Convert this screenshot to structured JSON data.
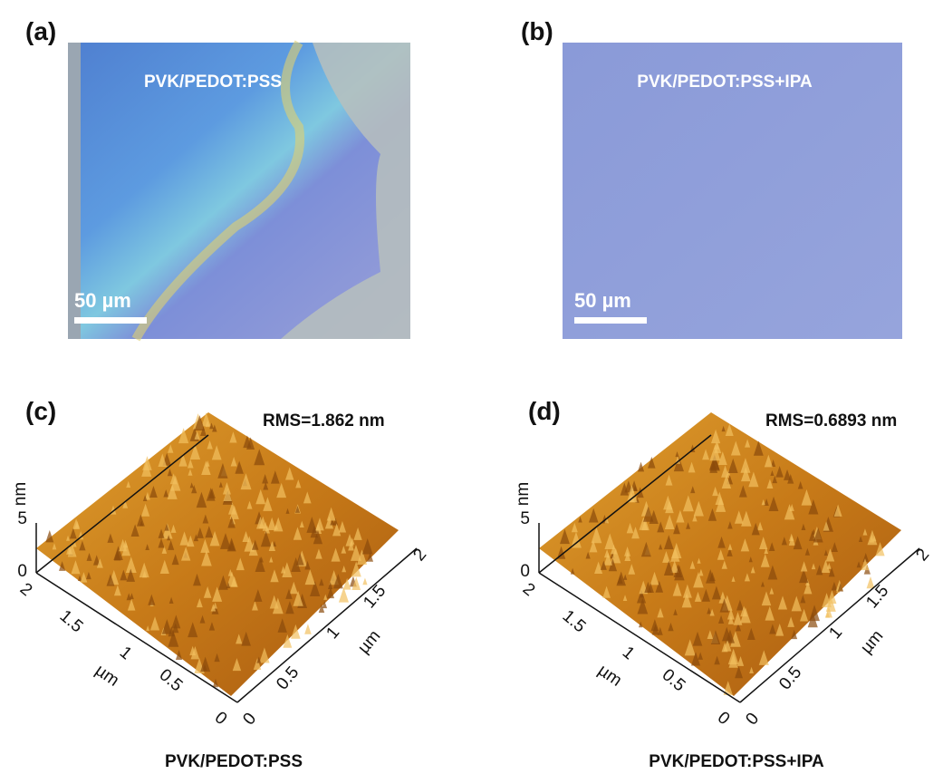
{
  "panels": [
    {
      "label": "(a)",
      "overlay": "PVK/PEDOT:PSS",
      "scale_bar": "50 µm"
    },
    {
      "label": "(b)",
      "overlay": "PVK/PEDOT:PSS+IPA",
      "scale_bar": "50 µm"
    },
    {
      "label": "(c)",
      "rms": "RMS=1.862 nm",
      "z_axis": {
        "label": "nm",
        "ticks": [
          "0",
          "5"
        ]
      },
      "left_axis": {
        "label": "µm",
        "ticks": [
          "2",
          "1.5",
          "1",
          "0.5",
          "0"
        ]
      },
      "right_axis": {
        "label": "µm",
        "ticks": [
          "0",
          "0.5",
          "1",
          "1.5",
          "2"
        ]
      },
      "caption": "PVK/PEDOT:PSS"
    },
    {
      "label": "(d)",
      "rms": "RMS=0.6893 nm",
      "z_axis": {
        "label": "nm",
        "ticks": [
          "0",
          "5"
        ]
      },
      "left_axis": {
        "label": "µm",
        "ticks": [
          "2",
          "1.5",
          "1",
          "0.5",
          "0"
        ]
      },
      "right_axis": {
        "label": "µm",
        "ticks": [
          "0",
          "0.5",
          "1",
          "1.5",
          "2"
        ]
      },
      "caption": "PVK/PEDOT:PSS+IPA"
    }
  ]
}
